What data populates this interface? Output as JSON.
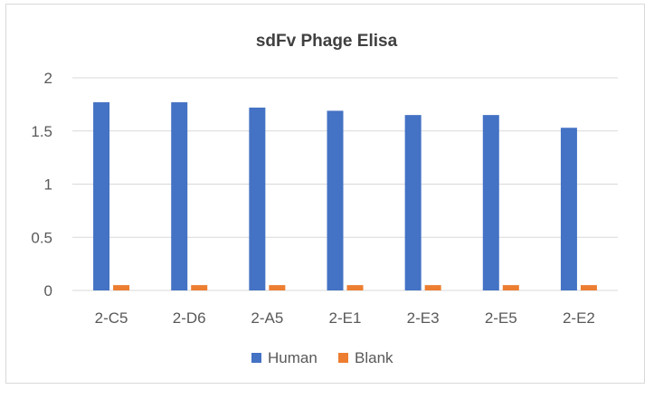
{
  "chart_data": {
    "type": "bar",
    "title": "sdFv Phage Elisa",
    "xlabel": "",
    "ylabel": "",
    "categories": [
      "2-C5",
      "2-D6",
      "2-A5",
      "2-E1",
      "2-E3",
      "2-E5",
      "2-E2"
    ],
    "series": [
      {
        "name": "Human",
        "color": "#4472c4",
        "values": [
          1.77,
          1.77,
          1.72,
          1.69,
          1.65,
          1.65,
          1.53
        ]
      },
      {
        "name": "Blank",
        "color": "#ed7d31",
        "values": [
          0.05,
          0.05,
          0.05,
          0.05,
          0.05,
          0.05,
          0.05
        ]
      }
    ],
    "ylim": [
      0,
      2
    ],
    "yticks": [
      "0",
      "0.5",
      "1",
      "1.5",
      "2"
    ],
    "grid": true,
    "legend_position": "bottom"
  }
}
